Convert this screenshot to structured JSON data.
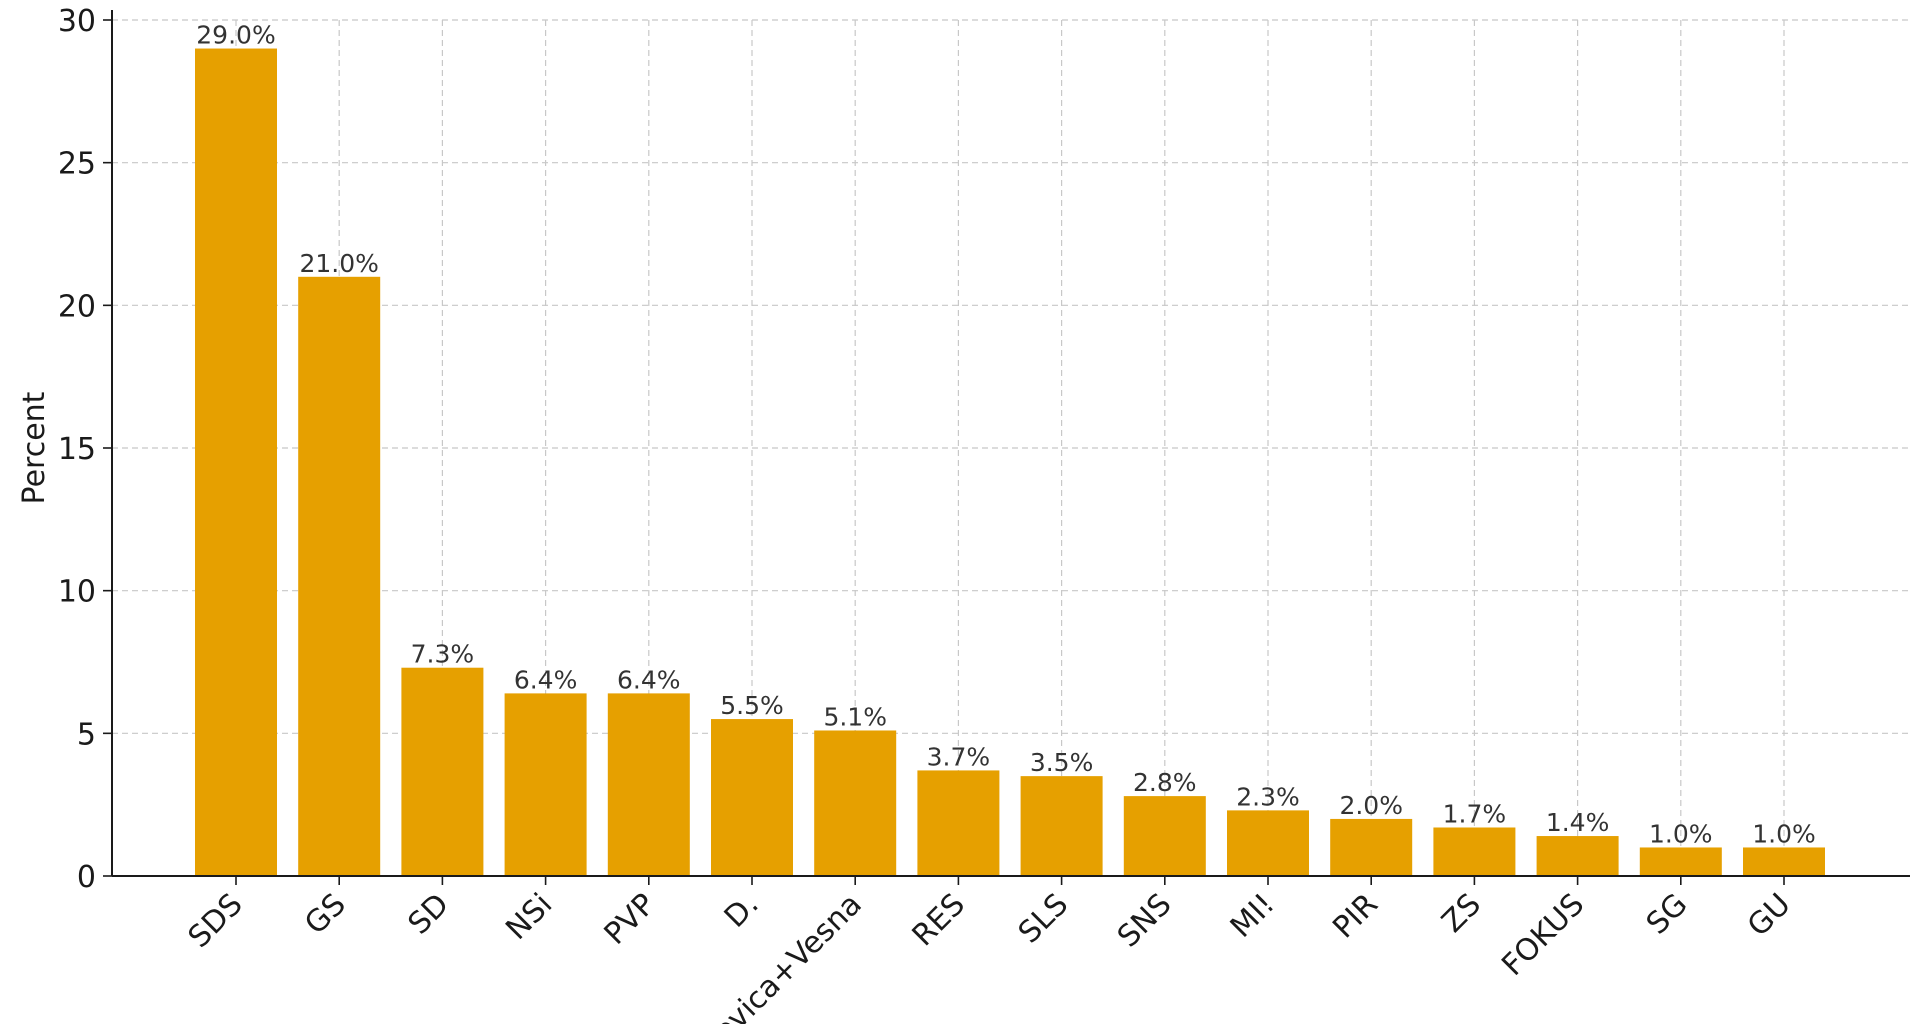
{
  "chart_data": {
    "type": "bar",
    "categories": [
      "SDS",
      "GS",
      "SD",
      "NSi",
      "PVP",
      "D.",
      "Levica+Vesna",
      "RES",
      "SLS",
      "SNS",
      "MI!",
      "PIR",
      "ZS",
      "FOKUS",
      "SG",
      "GU"
    ],
    "values": [
      29.0,
      21.0,
      7.3,
      6.4,
      6.4,
      5.5,
      5.1,
      3.7,
      3.5,
      2.8,
      2.3,
      2.0,
      1.7,
      1.4,
      1.0,
      1.0
    ],
    "value_labels": [
      "29.0%",
      "21.0%",
      "7.3%",
      "6.4%",
      "6.4%",
      "5.5%",
      "5.1%",
      "3.7%",
      "3.5%",
      "2.8%",
      "2.3%",
      "2.0%",
      "1.7%",
      "1.4%",
      "1.0%",
      "1.0%"
    ],
    "title": "",
    "xlabel": "",
    "ylabel": "Percent",
    "ylim": [
      0,
      30
    ],
    "yticks": [
      0,
      5,
      10,
      15,
      20,
      25,
      30
    ],
    "grid": true,
    "bar_color": "#E6A000"
  }
}
